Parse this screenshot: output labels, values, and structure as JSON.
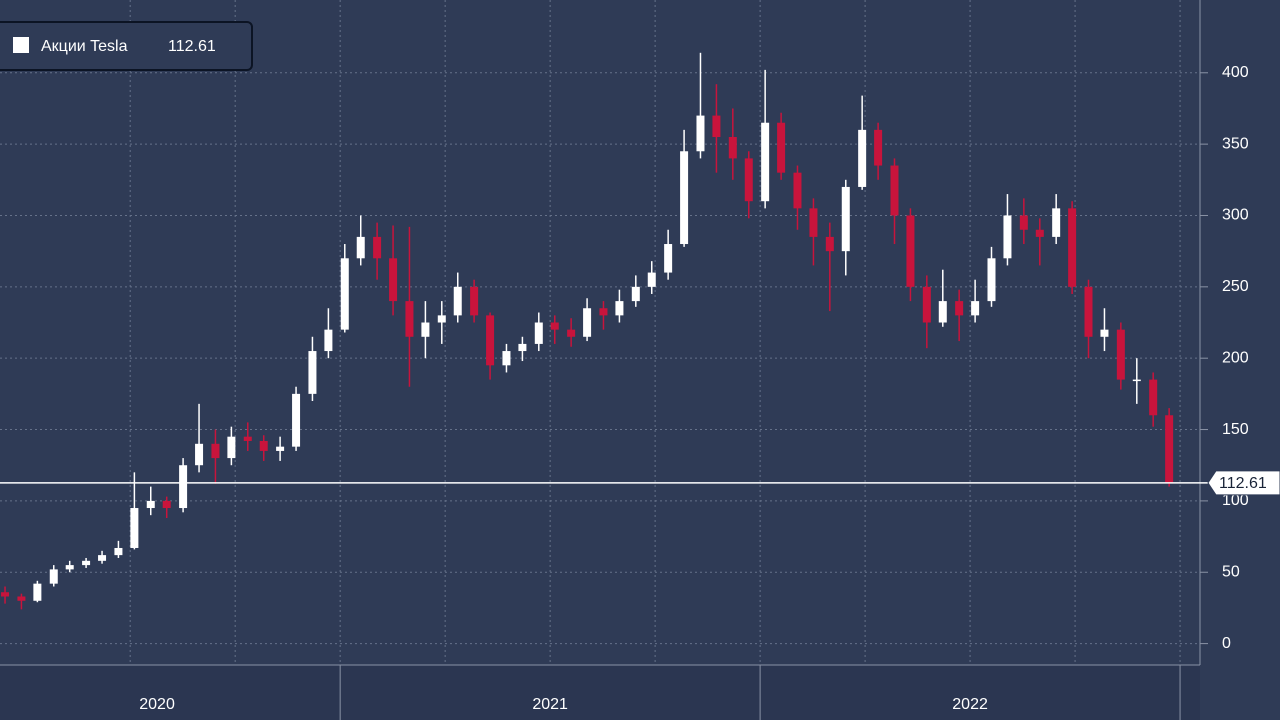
{
  "chart_data": {
    "type": "candlestick",
    "series": [
      {
        "name": "Акции Tesla",
        "up_color": "#ffffff",
        "down_color": "#c8143c",
        "x": [
          2020.202,
          2020.241,
          2020.279,
          2020.318,
          2020.356,
          2020.395,
          2020.433,
          2020.472,
          2020.51,
          2020.549,
          2020.587,
          2020.626,
          2020.664,
          2020.703,
          2020.741,
          2020.78,
          2020.818,
          2020.857,
          2020.895,
          2020.934,
          2020.972,
          2021.011,
          2021.049,
          2021.088,
          2021.126,
          2021.165,
          2021.203,
          2021.242,
          2021.28,
          2021.319,
          2021.357,
          2021.396,
          2021.434,
          2021.473,
          2021.511,
          2021.55,
          2021.588,
          2021.627,
          2021.665,
          2021.704,
          2021.742,
          2021.781,
          2021.819,
          2021.858,
          2021.896,
          2021.935,
          2021.973,
          2022.012,
          2022.05,
          2022.089,
          2022.127,
          2022.166,
          2022.204,
          2022.243,
          2022.281,
          2022.32,
          2022.358,
          2022.397,
          2022.435,
          2022.474,
          2022.512,
          2022.551,
          2022.589,
          2022.628,
          2022.666,
          2022.705,
          2022.743,
          2022.782,
          2022.82,
          2022.859,
          2022.897,
          2022.936,
          2022.974
        ],
        "open": [
          36,
          33,
          30,
          42,
          52,
          55,
          58,
          62,
          67,
          95,
          100,
          95,
          125,
          140,
          130,
          145,
          142,
          135,
          138,
          175,
          205,
          220,
          270,
          285,
          270,
          240,
          215,
          225,
          230,
          250,
          230,
          195,
          205,
          210,
          225,
          220,
          215,
          235,
          230,
          240,
          250,
          260,
          280,
          345,
          370,
          355,
          340,
          310,
          365,
          330,
          305,
          285,
          275,
          320,
          360,
          335,
          300,
          250,
          225,
          240,
          230,
          240,
          270,
          300,
          290,
          285,
          305,
          250,
          215,
          220,
          185,
          185,
          160
        ],
        "high": [
          40,
          35,
          44,
          55,
          58,
          60,
          65,
          72,
          120,
          110,
          103,
          130,
          168,
          150,
          152,
          155,
          146,
          145,
          180,
          215,
          235,
          280,
          300,
          295,
          293,
          292,
          240,
          240,
          260,
          255,
          232,
          210,
          215,
          232,
          230,
          228,
          242,
          240,
          248,
          258,
          268,
          290,
          360,
          414,
          392,
          375,
          345,
          402,
          372,
          335,
          312,
          295,
          325,
          384,
          365,
          340,
          305,
          258,
          262,
          248,
          255,
          278,
          315,
          312,
          298,
          315,
          310,
          255,
          235,
          225,
          200,
          190,
          165
        ],
        "low": [
          28,
          24,
          29,
          40,
          50,
          53,
          56,
          60,
          66,
          90,
          88,
          92,
          120,
          112,
          125,
          135,
          128,
          128,
          135,
          170,
          200,
          218,
          265,
          255,
          230,
          180,
          200,
          210,
          225,
          225,
          185,
          190,
          198,
          205,
          210,
          208,
          212,
          220,
          225,
          236,
          245,
          255,
          278,
          340,
          330,
          325,
          298,
          305,
          325,
          290,
          265,
          233,
          258,
          318,
          325,
          280,
          240,
          207,
          222,
          212,
          225,
          236,
          265,
          280,
          265,
          280,
          245,
          200,
          205,
          178,
          168,
          152,
          110
        ],
        "close": [
          33,
          30,
          42,
          52,
          55,
          58,
          62,
          67,
          95,
          100,
          95,
          125,
          140,
          130,
          145,
          142,
          135,
          138,
          175,
          205,
          220,
          270,
          285,
          270,
          240,
          215,
          225,
          230,
          250,
          230,
          195,
          205,
          210,
          225,
          220,
          215,
          235,
          230,
          240,
          250,
          260,
          280,
          345,
          370,
          355,
          340,
          310,
          365,
          330,
          305,
          285,
          275,
          320,
          360,
          335,
          300,
          250,
          225,
          240,
          230,
          240,
          270,
          300,
          290,
          285,
          305,
          250,
          215,
          220,
          185,
          185,
          160,
          112.61
        ]
      }
    ],
    "xlim": [
      2020.19,
      2023.238
    ],
    "xticks": [
      2020.5,
      2020.75,
      2021,
      2021.25,
      2021.5,
      2021.75,
      2022,
      2022.25,
      2022.5,
      2022.75,
      2023
    ],
    "xlabels": [
      {
        "value": 2020.564,
        "label": "2020"
      },
      {
        "value": 2021.5,
        "label": "2021"
      },
      {
        "value": 2022.5,
        "label": "2022"
      }
    ],
    "ylim": [
      -15,
      451
    ],
    "yticks": [
      0,
      50,
      100,
      150,
      200,
      250,
      300,
      350,
      400
    ],
    "grid": true
  }
}
